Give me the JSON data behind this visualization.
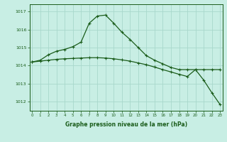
{
  "line1_x": [
    0,
    1,
    2,
    3,
    4,
    5,
    6,
    7,
    8,
    9,
    10,
    11,
    12,
    13,
    14,
    15,
    16,
    17,
    18,
    19,
    20,
    21,
    22,
    23
  ],
  "line1_y": [
    1014.2,
    1014.3,
    1014.6,
    1014.8,
    1014.9,
    1015.05,
    1015.3,
    1016.35,
    1016.75,
    1016.8,
    1016.35,
    1015.85,
    1015.45,
    1015.0,
    1014.55,
    1014.3,
    1014.1,
    1013.9,
    1013.78,
    1013.78,
    1013.78,
    1013.2,
    1012.5,
    1011.85
  ],
  "line2_x": [
    0,
    1,
    2,
    3,
    4,
    5,
    6,
    7,
    8,
    9,
    10,
    11,
    12,
    13,
    14,
    15,
    16,
    17,
    18,
    19,
    20,
    21,
    22,
    23
  ],
  "line2_y": [
    1014.2,
    1014.25,
    1014.3,
    1014.35,
    1014.38,
    1014.4,
    1014.42,
    1014.44,
    1014.44,
    1014.42,
    1014.38,
    1014.32,
    1014.25,
    1014.15,
    1014.05,
    1013.92,
    1013.78,
    1013.65,
    1013.52,
    1013.4,
    1013.78,
    1013.78,
    1013.78,
    1013.78
  ],
  "bg_color": "#c8eee4",
  "line_color": "#1a5c1a",
  "grid_color": "#a8d8cc",
  "xlabel": "Graphe pression niveau de la mer (hPa)",
  "yticks": [
    1012,
    1013,
    1014,
    1015,
    1016,
    1017
  ],
  "xtick_labels": [
    "0",
    "1",
    "2",
    "3",
    "4",
    "5",
    "6",
    "7",
    "8",
    "9",
    "10",
    "11",
    "12",
    "13",
    "14",
    "15",
    "16",
    "17",
    "18",
    "19",
    "20",
    "21",
    "22",
    "23"
  ],
  "xticks": [
    0,
    1,
    2,
    3,
    4,
    5,
    6,
    7,
    8,
    9,
    10,
    11,
    12,
    13,
    14,
    15,
    16,
    17,
    18,
    19,
    20,
    21,
    22,
    23
  ],
  "ylim": [
    1011.5,
    1017.4
  ],
  "xlim": [
    -0.3,
    23.3
  ]
}
